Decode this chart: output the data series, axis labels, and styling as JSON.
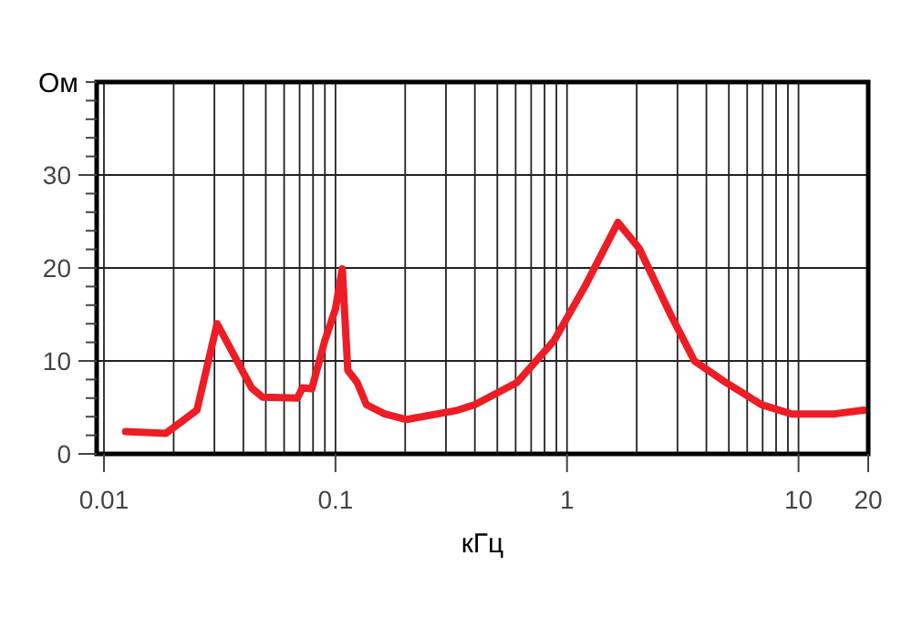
{
  "chart_data": {
    "type": "line",
    "xlabel": "кГц",
    "ylabel": "Ом",
    "log": "x",
    "grid": true,
    "marker": "none",
    "line_style": "solid",
    "xlim": [
      0.0093,
      20
    ],
    "ylim": [
      0,
      40
    ],
    "xticks": [
      0.01,
      {
        "value": 0.02,
        "label": null
      },
      {
        "value": 0.03,
        "label": null
      },
      {
        "value": 0.04,
        "label": null
      },
      {
        "value": 0.05,
        "label": null
      },
      {
        "value": 0.06,
        "label": null
      },
      {
        "value": 0.07,
        "label": null
      },
      {
        "value": 0.08,
        "label": null
      },
      {
        "value": 0.09,
        "label": null
      },
      0.1,
      {
        "value": 0.2,
        "label": null
      },
      {
        "value": 0.3,
        "label": null
      },
      {
        "value": 0.4,
        "label": null
      },
      {
        "value": 0.5,
        "label": null
      },
      {
        "value": 0.6,
        "label": null
      },
      {
        "value": 0.7,
        "label": null
      },
      {
        "value": 0.8,
        "label": null
      },
      {
        "value": 0.9,
        "label": null
      },
      1,
      {
        "value": 2,
        "label": null
      },
      {
        "value": 3,
        "label": null
      },
      {
        "value": 4,
        "label": null
      },
      {
        "value": 5,
        "label": null
      },
      {
        "value": 6,
        "label": null
      },
      {
        "value": 7,
        "label": null
      },
      {
        "value": 8,
        "label": null
      },
      {
        "value": 9,
        "label": null
      },
      10,
      20
    ],
    "yticks": [
      0,
      {
        "value": 2,
        "label": null
      },
      {
        "value": 4,
        "label": null
      },
      {
        "value": 6,
        "label": null
      },
      {
        "value": 8,
        "label": null
      },
      10,
      {
        "value": 12,
        "label": null
      },
      {
        "value": 14,
        "label": null
      },
      {
        "value": 16,
        "label": null
      },
      {
        "value": 18,
        "label": null
      },
      20,
      {
        "value": 22,
        "label": null
      },
      {
        "value": 24,
        "label": null
      },
      {
        "value": 26,
        "label": null
      },
      {
        "value": 28,
        "label": null
      },
      30,
      {
        "value": 32,
        "label": null
      },
      {
        "value": 34,
        "label": null
      },
      {
        "value": 36,
        "label": null
      },
      {
        "value": 38,
        "label": null
      },
      {
        "value": 40,
        "label": null
      }
    ],
    "series": [
      {
        "color": "#ee1c24",
        "x": [
          0.0124,
          0.0185,
          0.0252,
          0.0308,
          0.0434,
          0.0484,
          0.0684,
          0.072,
          0.079,
          0.09,
          0.1,
          0.107,
          0.113,
          0.124,
          0.136,
          0.163,
          0.203,
          0.337,
          0.4,
          0.61,
          0.88,
          1.2,
          1.66,
          2.05,
          2.8,
          3.55,
          4.84,
          6.9,
          9.3,
          14.3,
          19.1
        ],
        "values": [
          2.4,
          2.2,
          4.7,
          14,
          7.1,
          6.1,
          6,
          7.1,
          7,
          12.2,
          15.6,
          19.9,
          9,
          7.7,
          5.3,
          4.3,
          3.7,
          4.7,
          5.3,
          7.7,
          12.2,
          18.1,
          24.9,
          22.1,
          15,
          10,
          7.7,
          5.3,
          4.3,
          4.3,
          4.7
        ]
      }
    ]
  }
}
